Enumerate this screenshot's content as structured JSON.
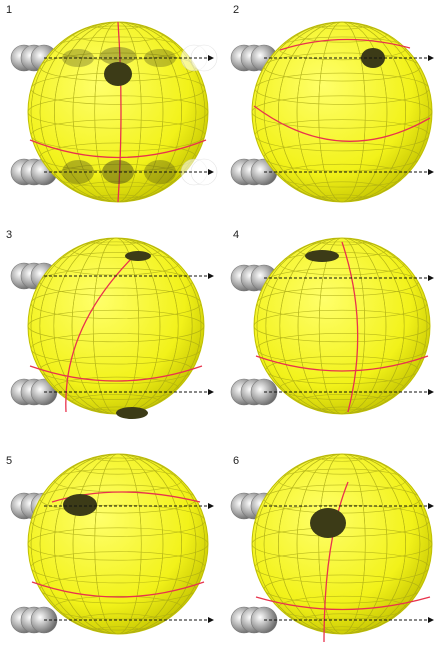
{
  "figure": {
    "colors": {
      "sphere_fill": "#f2f21a",
      "sphere_edge": "#c8c800",
      "grid_line": "#a9a915",
      "equator_meridian": "#e8334d",
      "spot": "#3c3b17",
      "arrow": "#111111",
      "ball_light": "#ffffff",
      "ball_dark": "#6a6a6a"
    },
    "panels": [
      {
        "label": "1"
      },
      {
        "label": "2"
      },
      {
        "label": "3"
      },
      {
        "label": "4"
      },
      {
        "label": "5"
      },
      {
        "label": "6"
      }
    ]
  }
}
